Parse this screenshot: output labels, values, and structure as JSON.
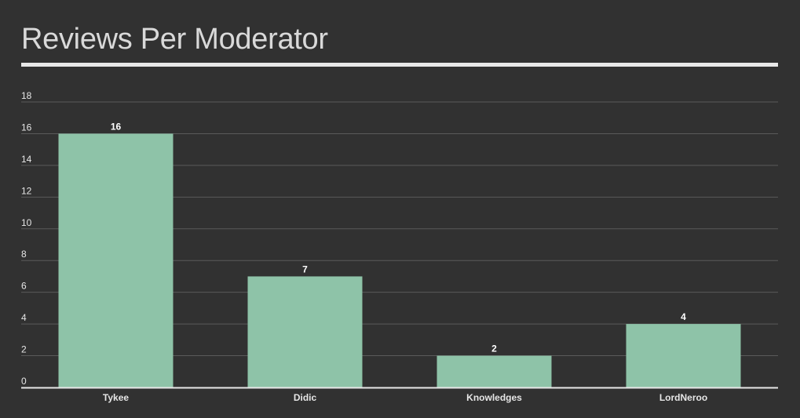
{
  "title": "Reviews Per Moderator",
  "colors": {
    "background": "#313131",
    "bar": "#8ec3a8",
    "grid": "#5a5a5a",
    "text": "#e6e6e6",
    "label_text": "#ffffff"
  },
  "chart_data": {
    "type": "bar",
    "title": "Reviews Per Moderator",
    "categories": [
      "Tykee",
      "Didic",
      "Knowledges",
      "LordNeroo"
    ],
    "values": [
      16,
      7,
      2,
      4
    ],
    "ylim": [
      0,
      18
    ],
    "yticks": [
      0,
      2,
      4,
      6,
      8,
      10,
      12,
      14,
      16,
      18
    ],
    "xlabel": "",
    "ylabel": "",
    "grid": true,
    "legend": "none",
    "data_labels": true
  }
}
